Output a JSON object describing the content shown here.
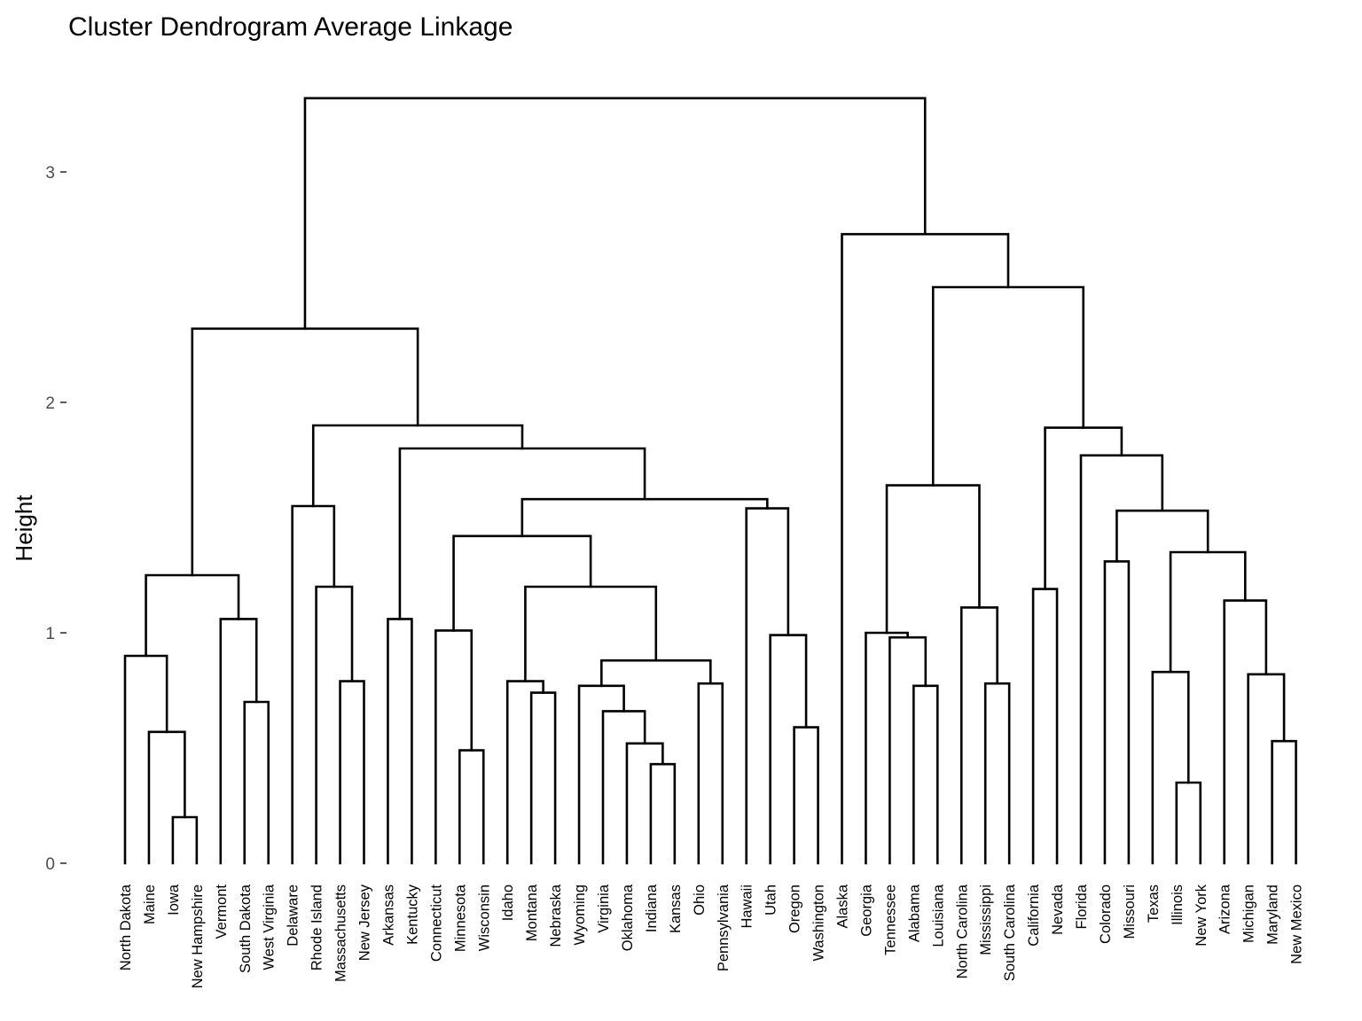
{
  "chart_data": {
    "type": "dendrogram",
    "title": "Cluster Dendrogram Average Linkage",
    "ylabel": "Height",
    "xlabel": "",
    "ylim": [
      0,
      3.3
    ],
    "yticks": [
      0,
      1,
      2,
      3
    ],
    "leaves": [
      "North Dakota",
      "Maine",
      "Iowa",
      "New Hampshire",
      "Vermont",
      "South Dakota",
      "West Virginia",
      "Delaware",
      "Rhode Island",
      "Massachusetts",
      "New Jersey",
      "Arkansas",
      "Kentucky",
      "Connecticut",
      "Minnesota",
      "Wisconsin",
      "Idaho",
      "Montana",
      "Nebraska",
      "Wyoming",
      "Virginia",
      "Oklahoma",
      "Indiana",
      "Kansas",
      "Ohio",
      "Pennsylvania",
      "Hawaii",
      "Utah",
      "Oregon",
      "Washington",
      "Alaska",
      "Georgia",
      "Tennessee",
      "Alabama",
      "Louisiana",
      "North Carolina",
      "Mississippi",
      "South Carolina",
      "California",
      "Nevada",
      "Florida",
      "Colorado",
      "Missouri",
      "Texas",
      "Illinois",
      "New York",
      "Arizona",
      "Michigan",
      "Maryland",
      "New Mexico"
    ],
    "merges": [
      {
        "a": "Iowa",
        "b": "New Hampshire",
        "h": 0.2
      },
      {
        "a": "Maine",
        "b": 0,
        "h": 0.57
      },
      {
        "a": "North Dakota",
        "b": 1,
        "h": 0.9
      },
      {
        "a": "South Dakota",
        "b": "West Virginia",
        "h": 0.7
      },
      {
        "a": "Vermont",
        "b": 3,
        "h": 1.06
      },
      {
        "a": 2,
        "b": 4,
        "h": 1.25
      },
      {
        "a": "Massachusetts",
        "b": "New Jersey",
        "h": 0.79
      },
      {
        "a": "Rhode Island",
        "b": 6,
        "h": 1.2
      },
      {
        "a": "Delaware",
        "b": 7,
        "h": 1.55
      },
      {
        "a": "Arkansas",
        "b": "Kentucky",
        "h": 1.06
      },
      {
        "a": "Minnesota",
        "b": "Wisconsin",
        "h": 0.49
      },
      {
        "a": "Connecticut",
        "b": 10,
        "h": 1.01
      },
      {
        "a": "Montana",
        "b": "Nebraska",
        "h": 0.74
      },
      {
        "a": "Idaho",
        "b": 12,
        "h": 0.79
      },
      {
        "a": "Indiana",
        "b": "Kansas",
        "h": 0.43
      },
      {
        "a": "Oklahoma",
        "b": 14,
        "h": 0.52
      },
      {
        "a": "Virginia",
        "b": 15,
        "h": 0.66
      },
      {
        "a": "Wyoming",
        "b": 16,
        "h": 0.77
      },
      {
        "a": "Ohio",
        "b": "Pennsylvania",
        "h": 0.78
      },
      {
        "a": 17,
        "b": 18,
        "h": 0.88
      },
      {
        "a": 13,
        "b": 19,
        "h": 1.2
      },
      {
        "a": 11,
        "b": 20,
        "h": 1.42
      },
      {
        "a": "Oregon",
        "b": "Washington",
        "h": 0.59
      },
      {
        "a": "Utah",
        "b": 22,
        "h": 0.99
      },
      {
        "a": "Hawaii",
        "b": 23,
        "h": 1.54
      },
      {
        "a": 21,
        "b": 24,
        "h": 1.58
      },
      {
        "a": 9,
        "b": 25,
        "h": 1.8
      },
      {
        "a": 8,
        "b": 26,
        "h": 1.9
      },
      {
        "a": 5,
        "b": 27,
        "h": 2.32
      },
      {
        "a": "Alabama",
        "b": "Louisiana",
        "h": 0.77
      },
      {
        "a": "Tennessee",
        "b": 29,
        "h": 0.98
      },
      {
        "a": "Georgia",
        "b": 30,
        "h": 1.0
      },
      {
        "a": "Mississippi",
        "b": "South Carolina",
        "h": 0.78
      },
      {
        "a": "North Carolina",
        "b": 32,
        "h": 1.11
      },
      {
        "a": 31,
        "b": 33,
        "h": 1.64
      },
      {
        "a": "California",
        "b": "Nevada",
        "h": 1.19
      },
      {
        "a": "Colorado",
        "b": "Missouri",
        "h": 1.31
      },
      {
        "a": "Illinois",
        "b": "New York",
        "h": 0.35
      },
      {
        "a": "Texas",
        "b": 37,
        "h": 0.83
      },
      {
        "a": "Maryland",
        "b": "New Mexico",
        "h": 0.53
      },
      {
        "a": "Michigan",
        "b": 39,
        "h": 0.82
      },
      {
        "a": "Arizona",
        "b": 40,
        "h": 1.14
      },
      {
        "a": 38,
        "b": 41,
        "h": 1.35
      },
      {
        "a": 36,
        "b": 42,
        "h": 1.53
      },
      {
        "a": "Florida",
        "b": 43,
        "h": 1.77
      },
      {
        "a": 35,
        "b": 44,
        "h": 1.89
      },
      {
        "a": 34,
        "b": 45,
        "h": 2.5
      },
      {
        "a": "Alaska",
        "b": 46,
        "h": 2.73
      },
      {
        "a": 28,
        "b": 47,
        "h": 3.32
      }
    ]
  }
}
